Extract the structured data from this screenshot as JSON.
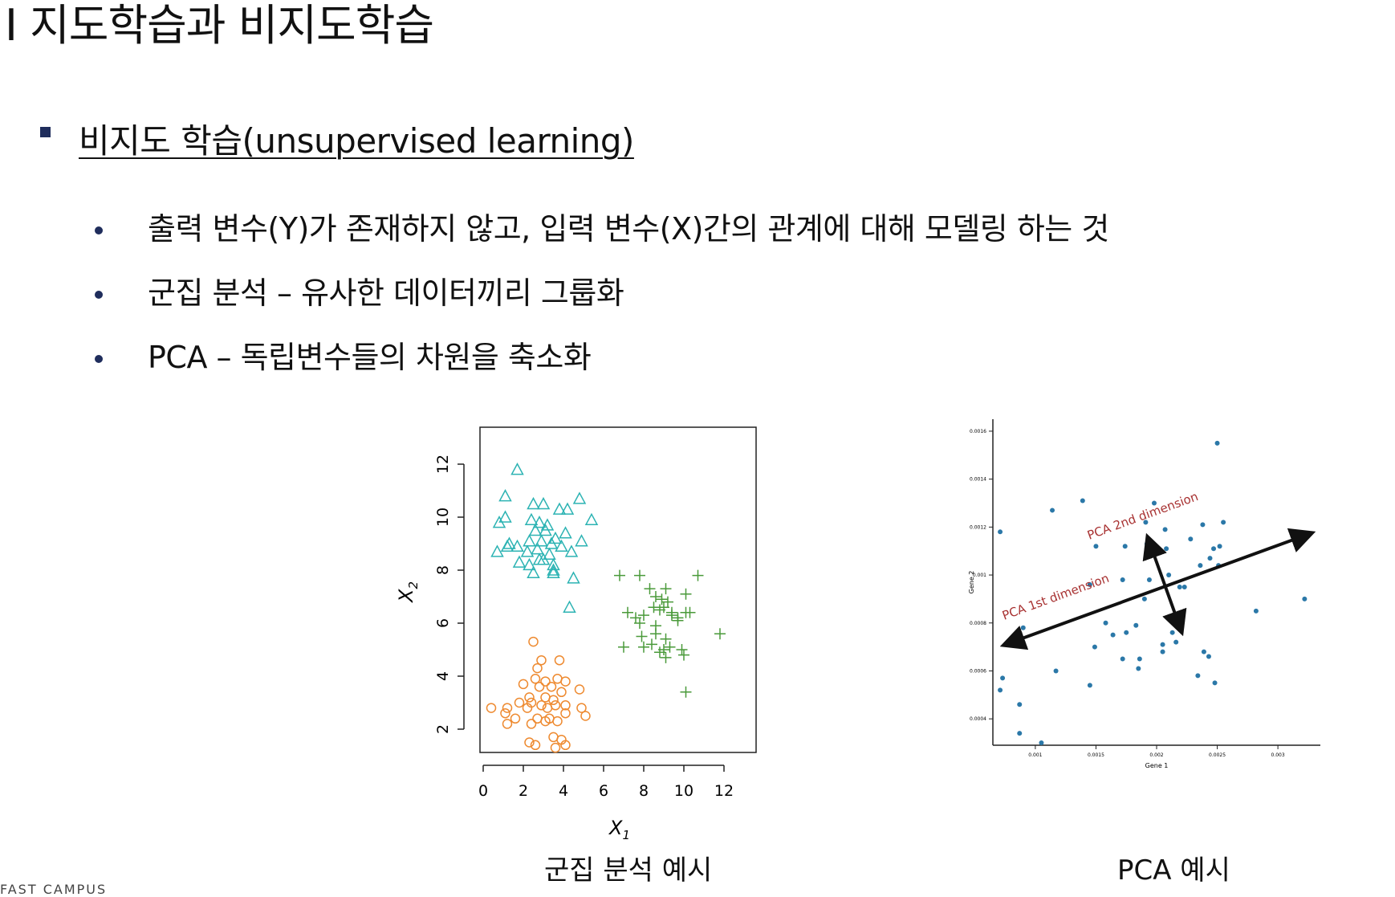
{
  "slide": {
    "title": "I 지도학습과 비지도학습",
    "heading": "비지도 학습(unsupervised learning)",
    "bullets": [
      "출력 변수(Y)가 존재하지 않고, 입력 변수(X)간의 관계에 대해 모델링 하는 것",
      "군집 분석 – 유사한 데이터끼리 그룹화",
      "PCA – 독립변수들의 차원을 축소화"
    ],
    "captions": {
      "cluster": "군집 분석 예시",
      "pca": "PCA 예시"
    },
    "footer": "FAST CAMPUS"
  },
  "chart_data": [
    {
      "type": "scatter",
      "title": "",
      "xlabel": "X1",
      "ylabel": "X2",
      "xlim": [
        0,
        12
      ],
      "ylim": [
        1,
        12
      ],
      "xticks": [
        0,
        2,
        4,
        6,
        8,
        10,
        12
      ],
      "yticks": [
        2,
        4,
        6,
        8,
        10,
        12
      ],
      "series": [
        {
          "marker": "triangle",
          "color": "#2cb3b3",
          "points": [
            [
              1.7,
              11.8
            ],
            [
              1.1,
              10.8
            ],
            [
              2.5,
              10.5
            ],
            [
              3.0,
              10.5
            ],
            [
              4.8,
              10.7
            ],
            [
              1.1,
              10.0
            ],
            [
              0.8,
              9.8
            ],
            [
              2.4,
              9.9
            ],
            [
              2.8,
              9.8
            ],
            [
              3.2,
              9.7
            ],
            [
              3.8,
              10.3
            ],
            [
              4.2,
              10.3
            ],
            [
              5.4,
              9.9
            ],
            [
              2.6,
              9.5
            ],
            [
              3.1,
              9.5
            ],
            [
              3.6,
              9.2
            ],
            [
              4.1,
              9.4
            ],
            [
              1.3,
              9.0
            ],
            [
              1.7,
              8.9
            ],
            [
              2.3,
              9.1
            ],
            [
              2.9,
              9.1
            ],
            [
              3.4,
              9.0
            ],
            [
              3.9,
              8.9
            ],
            [
              4.9,
              9.1
            ],
            [
              0.7,
              8.7
            ],
            [
              1.2,
              8.9
            ],
            [
              2.2,
              8.7
            ],
            [
              2.7,
              8.8
            ],
            [
              3.3,
              8.6
            ],
            [
              4.4,
              8.7
            ],
            [
              1.8,
              8.3
            ],
            [
              2.3,
              8.2
            ],
            [
              2.8,
              8.4
            ],
            [
              3.5,
              8.2
            ],
            [
              2.5,
              7.9
            ],
            [
              3.5,
              7.9
            ],
            [
              4.5,
              7.7
            ],
            [
              4.3,
              6.6
            ],
            [
              3.0,
              8.4
            ],
            [
              3.5,
              8.0
            ]
          ]
        },
        {
          "marker": "plus",
          "color": "#4a9a3a",
          "points": [
            [
              6.8,
              7.8
            ],
            [
              7.8,
              7.8
            ],
            [
              10.7,
              7.8
            ],
            [
              8.3,
              7.3
            ],
            [
              9.1,
              7.3
            ],
            [
              8.6,
              7.0
            ],
            [
              10.1,
              7.1
            ],
            [
              9.2,
              6.8
            ],
            [
              8.8,
              6.5
            ],
            [
              9.4,
              6.3
            ],
            [
              10.1,
              6.4
            ],
            [
              7.2,
              6.4
            ],
            [
              7.6,
              6.2
            ],
            [
              8.0,
              6.3
            ],
            [
              8.5,
              6.6
            ],
            [
              9.0,
              6.6
            ],
            [
              9.7,
              6.2
            ],
            [
              10.3,
              6.4
            ],
            [
              7.8,
              6.0
            ],
            [
              8.6,
              5.9
            ],
            [
              9.7,
              6.1
            ],
            [
              11.8,
              5.6
            ],
            [
              7.9,
              5.5
            ],
            [
              8.6,
              5.6
            ],
            [
              9.1,
              5.4
            ],
            [
              8.4,
              5.2
            ],
            [
              9.3,
              5.1
            ],
            [
              9.9,
              5.0
            ],
            [
              7.0,
              5.1
            ],
            [
              8.0,
              5.1
            ],
            [
              8.8,
              4.9
            ],
            [
              9.1,
              4.7
            ],
            [
              10.0,
              4.8
            ],
            [
              9.0,
              5.0
            ],
            [
              10.1,
              3.4
            ],
            [
              9.4,
              6.4
            ],
            [
              8.9,
              6.9
            ]
          ]
        },
        {
          "marker": "circle",
          "color": "#ee8a30",
          "points": [
            [
              2.5,
              5.3
            ],
            [
              2.9,
              4.6
            ],
            [
              3.8,
              4.6
            ],
            [
              2.7,
              4.3
            ],
            [
              2.6,
              3.9
            ],
            [
              3.1,
              3.8
            ],
            [
              3.7,
              3.9
            ],
            [
              4.1,
              3.8
            ],
            [
              2.0,
              3.7
            ],
            [
              2.8,
              3.6
            ],
            [
              3.4,
              3.6
            ],
            [
              4.8,
              3.5
            ],
            [
              3.9,
              3.4
            ],
            [
              2.3,
              3.2
            ],
            [
              3.1,
              3.2
            ],
            [
              3.5,
              3.1
            ],
            [
              1.8,
              3.0
            ],
            [
              2.4,
              3.0
            ],
            [
              2.9,
              2.9
            ],
            [
              3.6,
              2.9
            ],
            [
              4.1,
              2.9
            ],
            [
              0.4,
              2.8
            ],
            [
              1.2,
              2.8
            ],
            [
              2.2,
              2.8
            ],
            [
              3.2,
              2.8
            ],
            [
              4.9,
              2.8
            ],
            [
              1.1,
              2.6
            ],
            [
              4.1,
              2.6
            ],
            [
              5.1,
              2.5
            ],
            [
              1.6,
              2.4
            ],
            [
              2.7,
              2.4
            ],
            [
              3.3,
              2.4
            ],
            [
              3.7,
              2.3
            ],
            [
              1.2,
              2.2
            ],
            [
              2.4,
              2.2
            ],
            [
              3.1,
              2.3
            ],
            [
              3.5,
              1.7
            ],
            [
              2.3,
              1.5
            ],
            [
              2.6,
              1.4
            ],
            [
              3.6,
              1.3
            ],
            [
              4.1,
              1.4
            ],
            [
              3.9,
              1.6
            ]
          ]
        }
      ]
    },
    {
      "type": "scatter",
      "title": "",
      "xlabel": "Gene 1",
      "ylabel": "Gene 2",
      "xlim": [
        0.00065,
        0.00335
      ],
      "ylim": [
        0.00029,
        0.00165
      ],
      "xticks": [
        "0.001",
        "0.0015",
        "0.002",
        "0.0025",
        "0.003"
      ],
      "yticks": [
        "0.0004",
        "0.0006",
        "0.0008",
        "0.001",
        "0.0012",
        "0.0014",
        "0.0016"
      ],
      "series": [
        {
          "marker": "dot",
          "color": "#2b78a8",
          "points": [
            [
              0.00071,
              0.00118
            ],
            [
              0.0009,
              0.00078
            ],
            [
              0.00114,
              0.00127
            ],
            [
              0.00139,
              0.00131
            ],
            [
              0.00117,
              0.0006
            ],
            [
              0.00071,
              0.00052
            ],
            [
              0.00073,
              0.00057
            ],
            [
              0.00087,
              0.00046
            ],
            [
              0.00087,
              0.00034
            ],
            [
              0.00105,
              0.0003
            ],
            [
              0.00145,
              0.00054
            ],
            [
              0.00145,
              0.00096
            ],
            [
              0.0015,
              0.00112
            ],
            [
              0.00149,
              0.0007
            ],
            [
              0.00172,
              0.00098
            ],
            [
              0.00174,
              0.00112
            ],
            [
              0.00191,
              0.00122
            ],
            [
              0.00198,
              0.0013
            ],
            [
              0.00192,
              0.00113
            ],
            [
              0.00207,
              0.00119
            ],
            [
              0.00228,
              0.00115
            ],
            [
              0.00236,
              0.00104
            ],
            [
              0.00252,
              0.00112
            ],
            [
              0.00244,
              0.00107
            ],
            [
              0.00247,
              0.00111
            ],
            [
              0.00251,
              0.00104
            ],
            [
              0.00255,
              0.00122
            ],
            [
              0.0025,
              0.00155
            ],
            [
              0.00282,
              0.00085
            ],
            [
              0.00322,
              0.0009
            ],
            [
              0.0019,
              0.0009
            ],
            [
              0.00183,
              0.00079
            ],
            [
              0.00175,
              0.00076
            ],
            [
              0.00164,
              0.00075
            ],
            [
              0.00158,
              0.0008
            ],
            [
              0.0021,
              0.001
            ],
            [
              0.00219,
              0.00095
            ],
            [
              0.00223,
              0.00095
            ],
            [
              0.00205,
              0.00071
            ],
            [
              0.00213,
              0.00076
            ],
            [
              0.00216,
              0.00072
            ],
            [
              0.00205,
              0.00068
            ],
            [
              0.00186,
              0.00065
            ],
            [
              0.00185,
              0.00061
            ],
            [
              0.00172,
              0.00065
            ],
            [
              0.00194,
              0.00098
            ],
            [
              0.00234,
              0.00058
            ],
            [
              0.00239,
              0.00068
            ],
            [
              0.00243,
              0.00066
            ],
            [
              0.00248,
              0.00055
            ],
            [
              0.00208,
              0.00111
            ],
            [
              0.00238,
              0.00121
            ]
          ]
        }
      ],
      "annotations": [
        {
          "text": "PCA 1st dimension",
          "color": "#a83232"
        },
        {
          "text": "PCA 2nd dimension",
          "color": "#a83232"
        }
      ]
    }
  ]
}
